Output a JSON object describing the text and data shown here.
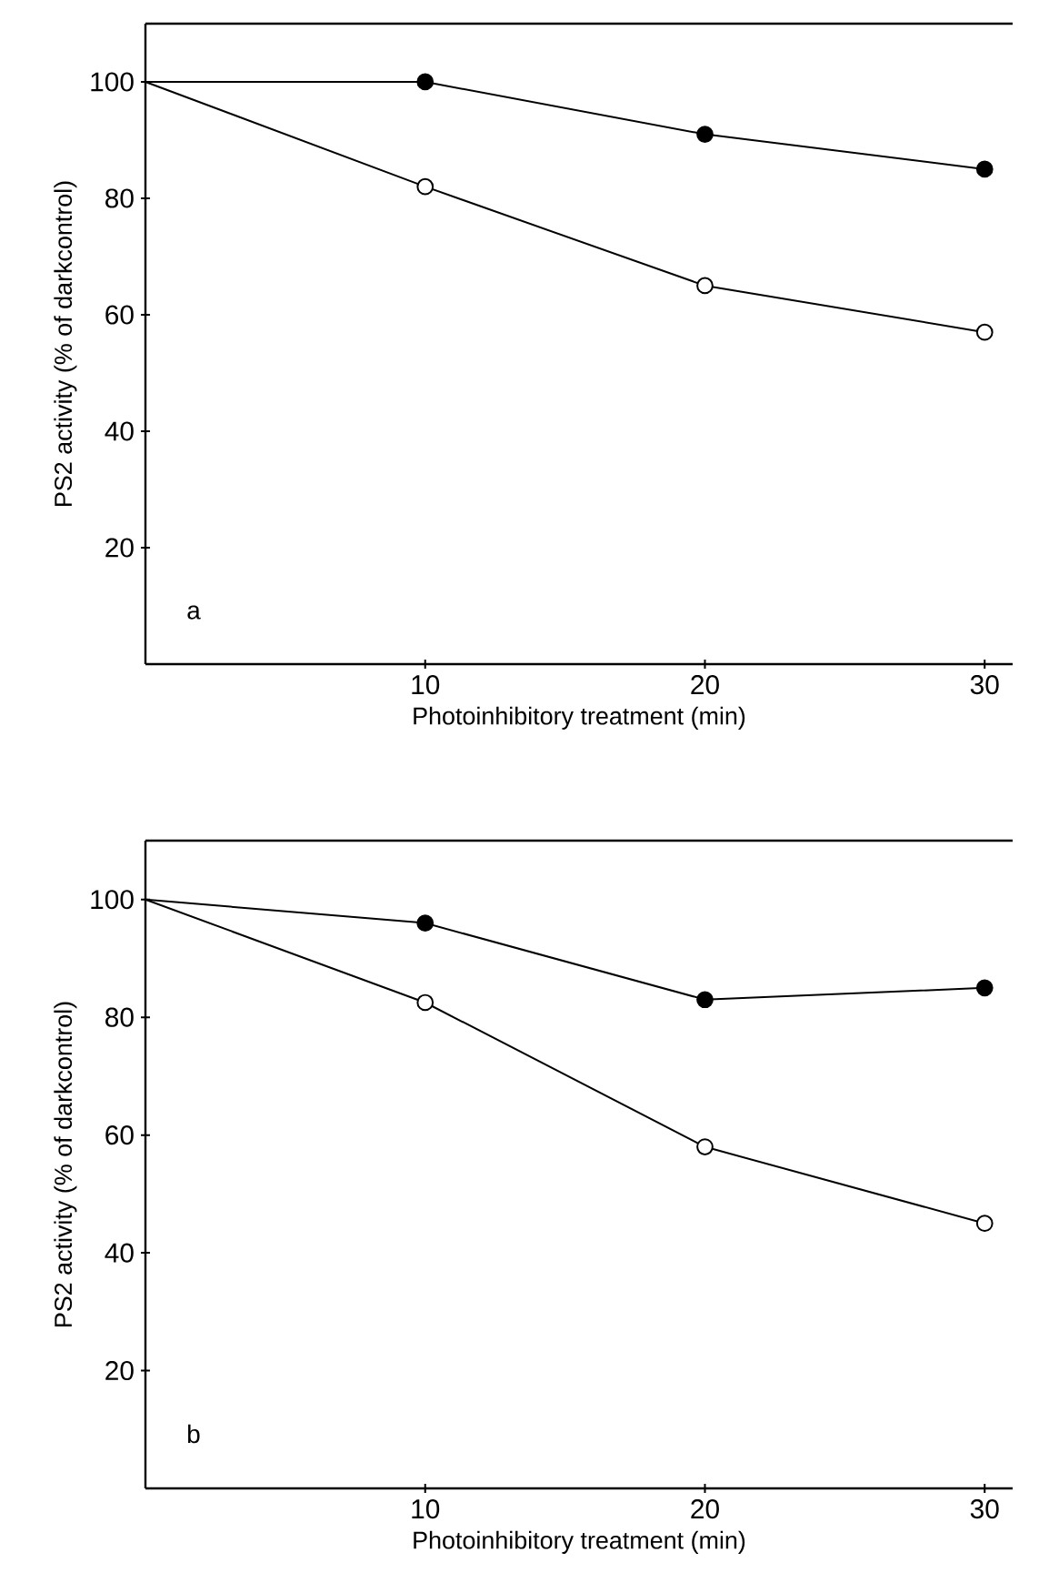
{
  "chart_data": [
    {
      "type": "line",
      "xlabel": "Photoinhibitory treatment (min)",
      "ylabel": "PS2 activity (% of darkcontrol)",
      "x": [
        0,
        10,
        20,
        30
      ],
      "series": [
        {
          "color": "#000000",
          "values": [
            100,
            100,
            91,
            85
          ]
        },
        {
          "color": "#000000",
          "values": [
            100,
            82,
            65,
            57
          ]
        }
      ],
      "xlim": [
        0,
        31
      ],
      "ylim": [
        0,
        110
      ],
      "xticks": [
        10,
        20,
        30
      ],
      "yticks": [
        20,
        40,
        60,
        80,
        100
      ],
      "marker": "circle",
      "line_style": "solid",
      "annotations": [
        "a"
      ]
    },
    {
      "type": "line",
      "xlabel": "Photoinhibitory treatment (min)",
      "ylabel": "PS2 activity (% of darkcontrol)",
      "x": [
        0,
        10,
        20,
        30
      ],
      "series": [
        {
          "color": "#000000",
          "values": [
            100,
            96,
            83,
            85
          ]
        },
        {
          "color": "#000000",
          "values": [
            100,
            82.5,
            58,
            45
          ]
        }
      ],
      "xlim": [
        0,
        31
      ],
      "ylim": [
        0,
        110
      ],
      "xticks": [
        10,
        20,
        30
      ],
      "yticks": [
        20,
        40,
        60,
        80,
        100
      ],
      "marker": "circle",
      "line_style": "solid",
      "annotations": [
        "b"
      ]
    }
  ]
}
